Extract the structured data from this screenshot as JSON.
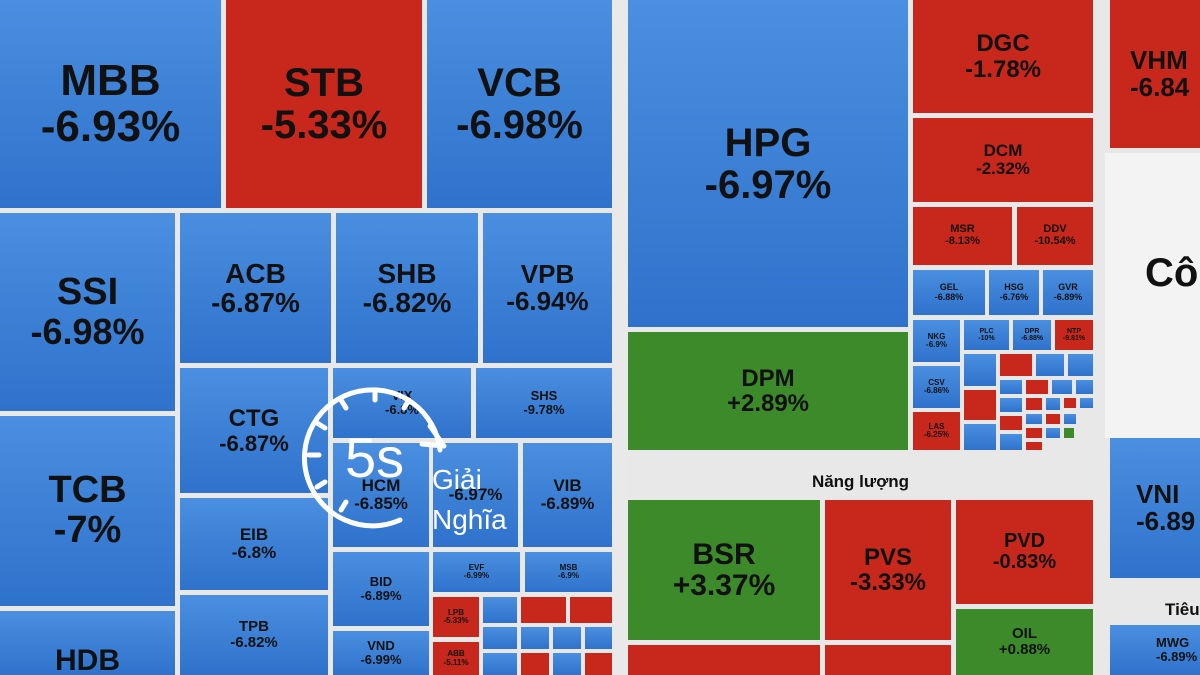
{
  "tiles": {
    "MBB": {
      "ticker": "MBB",
      "change": "-6.93%"
    },
    "STB": {
      "ticker": "STB",
      "change": "-5.33%"
    },
    "VCB": {
      "ticker": "VCB",
      "change": "-6.98%"
    },
    "SSI": {
      "ticker": "SSI",
      "change": "-6.98%"
    },
    "ACB": {
      "ticker": "ACB",
      "change": "-6.87%"
    },
    "SHB": {
      "ticker": "SHB",
      "change": "-6.82%"
    },
    "VPB": {
      "ticker": "VPB",
      "change": "-6.94%"
    },
    "TCB": {
      "ticker": "TCB",
      "change": "-7%"
    },
    "CTG": {
      "ticker": "CTG",
      "change": "-6.87%"
    },
    "VIX": {
      "ticker": "VIX",
      "change": "-6.8%"
    },
    "SHS": {
      "ticker": "SHS",
      "change": "-9.78%"
    },
    "HCM": {
      "ticker": "HCM",
      "change": "-6.85%"
    },
    "VND2": {
      "ticker": "",
      "change": "-6.97%"
    },
    "VIB": {
      "ticker": "VIB",
      "change": "-6.89%"
    },
    "EIB": {
      "ticker": "EIB",
      "change": "-6.8%"
    },
    "HDB": {
      "ticker": "HDB",
      "change": ""
    },
    "BID": {
      "ticker": "BID",
      "change": "-6.89%"
    },
    "EVF": {
      "ticker": "EVF",
      "change": "-6.99%"
    },
    "MSB": {
      "ticker": "MSB",
      "change": "-6.9%"
    },
    "TPB": {
      "ticker": "TPB",
      "change": "-6.82%"
    },
    "VND": {
      "ticker": "VND",
      "change": "-6.99%"
    },
    "LPB": {
      "ticker": "LPB",
      "change": "-5.33%"
    },
    "ABB": {
      "ticker": "ABB",
      "change": "-5.11%"
    },
    "HPG": {
      "ticker": "HPG",
      "change": "-6.97%"
    },
    "DPM": {
      "ticker": "DPM",
      "change": "+2.89%"
    },
    "DGC": {
      "ticker": "DGC",
      "change": "-1.78%"
    },
    "DCM": {
      "ticker": "DCM",
      "change": "-2.32%"
    },
    "MSR": {
      "ticker": "MSR",
      "change": "-8.13%"
    },
    "DDV": {
      "ticker": "DDV",
      "change": "-10.54%"
    },
    "GEL": {
      "ticker": "GEL",
      "change": "-6.88%"
    },
    "HSG": {
      "ticker": "HSG",
      "change": "-6.76%"
    },
    "GVR": {
      "ticker": "GVR",
      "change": "-6.89%"
    },
    "NKG": {
      "ticker": "NKG",
      "change": "-6.9%"
    },
    "PLC": {
      "ticker": "PLC",
      "change": "-10%"
    },
    "DPR": {
      "ticker": "DPR",
      "change": "-6.88%"
    },
    "NTP": {
      "ticker": "NTP",
      "change": "-9.81%"
    },
    "CSV": {
      "ticker": "CSV",
      "change": "-6.86%"
    },
    "LAS": {
      "ticker": "LAS",
      "change": "-6.25%"
    },
    "BSR": {
      "ticker": "BSR",
      "change": "+3.37%"
    },
    "PVS": {
      "ticker": "PVS",
      "change": "-3.33%"
    },
    "PVD": {
      "ticker": "PVD",
      "change": "-0.83%"
    },
    "OIL": {
      "ticker": "OIL",
      "change": "+0.88%"
    },
    "VHM": {
      "ticker": "VHM",
      "change": "-6.84"
    },
    "VNM": {
      "ticker": "VNI",
      "change": "-6.89"
    },
    "MWG": {
      "ticker": "MWG",
      "change": "-6.89%"
    }
  },
  "sectors": {
    "energy": "Năng lượng",
    "industry_partial": "Cô",
    "retail_partial": "Tiêu"
  },
  "logo": {
    "badge": "5s",
    "line1": "Giải",
    "line2": "Nghĩa"
  },
  "colors": {
    "down": "#2f72cc",
    "decline": "#c8271b",
    "up": "#3d8a2a"
  }
}
